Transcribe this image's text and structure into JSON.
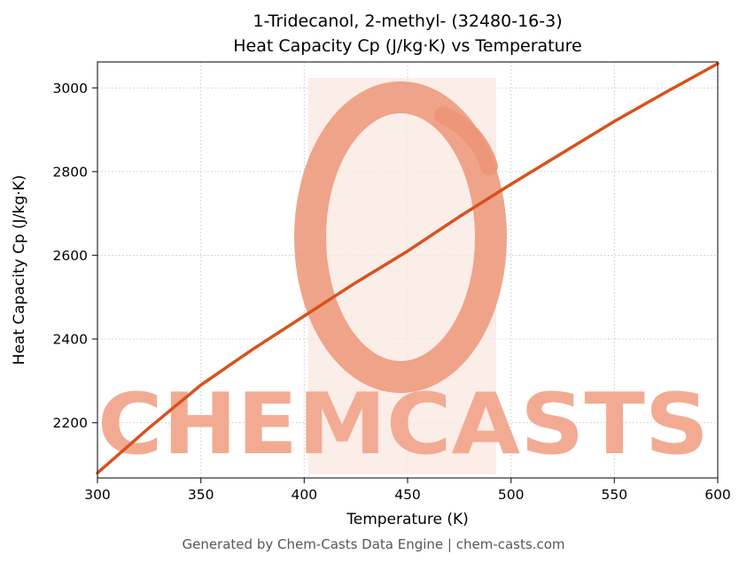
{
  "title_line1": "1-Tridecanol, 2-methyl- (32480-16-3)",
  "title_line2": "Heat Capacity Cp (J/kg·K) vs Temperature",
  "footer": "Generated by Chem-Casts Data Engine | chem-casts.com",
  "watermark": {
    "text": "CHEMCASTS",
    "text_color": "#f2ab92",
    "ring_color": "#ec9578",
    "band_color": "#f9e7e0"
  },
  "chart_data": {
    "type": "line",
    "x": [
      300,
      325,
      350,
      375,
      400,
      425,
      450,
      475,
      500,
      525,
      550,
      575,
      600
    ],
    "values": [
      2080,
      2188,
      2290,
      2375,
      2455,
      2535,
      2610,
      2692,
      2770,
      2845,
      2920,
      2990,
      3058
    ],
    "title": "1-Tridecanol, 2-methyl- (32480-16-3) Heat Capacity Cp (J/kg·K) vs Temperature",
    "xlabel": "Temperature (K)",
    "ylabel": "Heat Capacity Cp (J/kg·K)",
    "xlim": [
      300,
      600
    ],
    "ylim": [
      2068,
      3062
    ],
    "xticks": [
      300,
      350,
      400,
      450,
      500,
      550,
      600
    ],
    "yticks": [
      2200,
      2400,
      2600,
      2800,
      3000
    ],
    "grid": true,
    "legend": "none",
    "line_color": "#d8521c",
    "grid_color": "#c9c9c9",
    "spine_color": "#2b2b2b"
  }
}
